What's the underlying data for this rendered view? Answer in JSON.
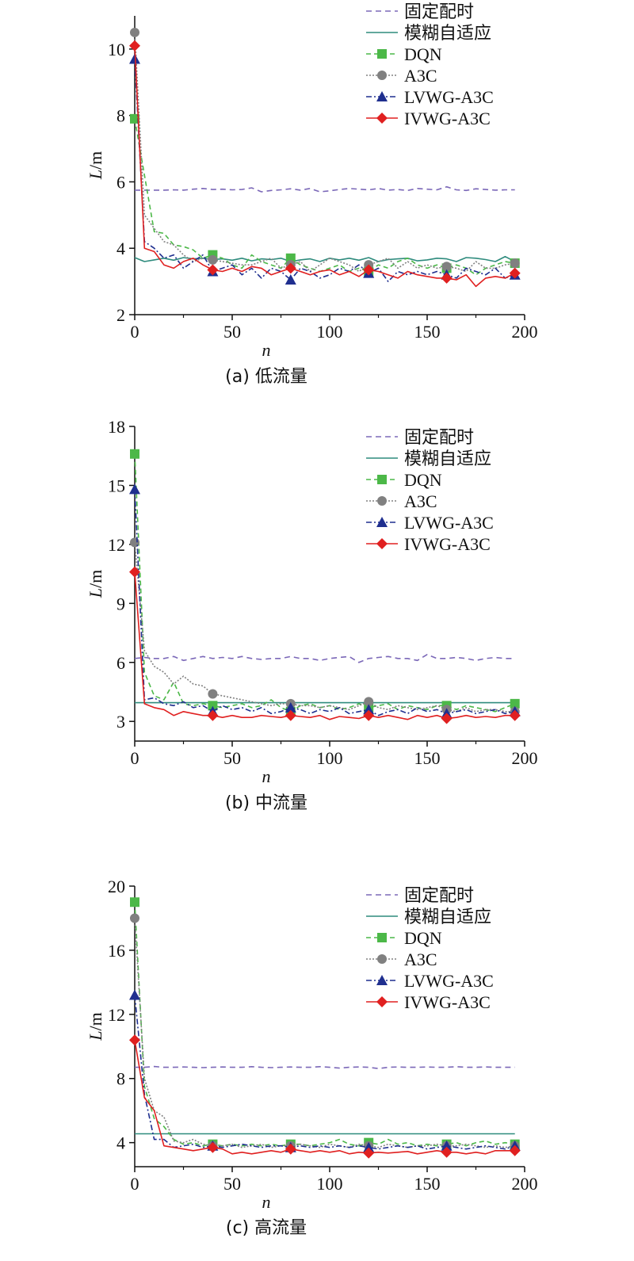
{
  "legend_labels": [
    "固定配时",
    "模糊自适应",
    "DQN",
    "A3C",
    "LVWG-A3C",
    "IVWG-A3C"
  ],
  "series_styles": [
    {
      "name": "固定配时",
      "color": "#7b68b8",
      "dash": "7,5",
      "marker": "none"
    },
    {
      "name": "模糊自适应",
      "color": "#2e8b7d",
      "dash": "",
      "marker": "none"
    },
    {
      "name": "DQN",
      "color": "#4cb848",
      "dash": "6,4",
      "marker": "square"
    },
    {
      "name": "A3C",
      "color": "#808080",
      "dash": "2,2",
      "marker": "circle"
    },
    {
      "name": "LVWG-A3C",
      "color": "#1f2f8f",
      "dash": "7,3,2,3",
      "marker": "triangle"
    },
    {
      "name": "IVWG-A3C",
      "color": "#e02020",
      "dash": "",
      "marker": "diamond"
    }
  ],
  "chart_data": [
    {
      "type": "line",
      "caption": "(a) 低流量",
      "xlabel": "n",
      "ylabel": "L/m",
      "xlim": [
        0,
        200
      ],
      "ylim": [
        2,
        11
      ],
      "xticks": [
        0,
        50,
        100,
        150,
        200
      ],
      "yticks": [
        2,
        4,
        6,
        8,
        10
      ],
      "x": [
        0,
        5,
        10,
        15,
        20,
        25,
        30,
        35,
        40,
        45,
        50,
        55,
        60,
        65,
        70,
        75,
        80,
        85,
        90,
        95,
        100,
        105,
        110,
        115,
        120,
        125,
        130,
        135,
        140,
        145,
        150,
        155,
        160,
        165,
        170,
        175,
        180,
        185,
        190,
        195
      ],
      "marker_x": [
        0,
        40,
        80,
        120,
        160,
        195
      ],
      "series": [
        {
          "name": "固定配时",
          "values": [
            5.75,
            5.75,
            5.75,
            5.75,
            5.76,
            5.75,
            5.78,
            5.8,
            5.77,
            5.78,
            5.76,
            5.77,
            5.82,
            5.7,
            5.74,
            5.76,
            5.79,
            5.75,
            5.8,
            5.7,
            5.73,
            5.77,
            5.8,
            5.78,
            5.76,
            5.8,
            5.75,
            5.77,
            5.74,
            5.8,
            5.78,
            5.76,
            5.85,
            5.76,
            5.74,
            5.79,
            5.77,
            5.75,
            5.76,
            5.76
          ]
        },
        {
          "name": "模糊自适应",
          "values": [
            3.72,
            3.6,
            3.65,
            3.7,
            3.64,
            3.72,
            3.68,
            3.7,
            3.66,
            3.68,
            3.64,
            3.7,
            3.62,
            3.68,
            3.66,
            3.7,
            3.6,
            3.65,
            3.68,
            3.6,
            3.7,
            3.65,
            3.7,
            3.64,
            3.72,
            3.6,
            3.66,
            3.68,
            3.7,
            3.62,
            3.65,
            3.7,
            3.68,
            3.6,
            3.72,
            3.7,
            3.66,
            3.6,
            3.75,
            3.6
          ]
        },
        {
          "name": "DQN",
          "values": [
            7.9,
            6.2,
            4.5,
            4.45,
            4.1,
            4.05,
            3.95,
            3.7,
            3.8,
            3.7,
            3.5,
            3.4,
            3.8,
            3.6,
            3.5,
            3.4,
            3.7,
            3.5,
            3.4,
            3.3,
            3.4,
            3.5,
            3.3,
            3.4,
            3.3,
            3.5,
            3.4,
            3.6,
            3.7,
            3.5,
            3.4,
            3.5,
            3.4,
            3.5,
            3.4,
            3.2,
            3.4,
            3.5,
            3.6,
            3.55
          ]
        },
        {
          "name": "A3C",
          "values": [
            10.5,
            5.0,
            4.6,
            4.2,
            4.1,
            3.8,
            3.6,
            3.7,
            3.65,
            3.6,
            3.55,
            3.5,
            3.5,
            3.6,
            3.7,
            3.4,
            3.5,
            3.6,
            3.3,
            3.5,
            3.7,
            3.6,
            3.5,
            3.3,
            3.5,
            3.6,
            3.7,
            3.4,
            3.6,
            3.4,
            3.5,
            3.4,
            3.45,
            3.4,
            3.3,
            3.6,
            3.4,
            3.4,
            3.5,
            3.55
          ]
        },
        {
          "name": "LVWG-A3C",
          "values": [
            9.7,
            4.2,
            4.0,
            3.7,
            3.8,
            3.4,
            3.6,
            3.8,
            3.3,
            3.4,
            3.5,
            3.2,
            3.4,
            3.1,
            3.4,
            3.3,
            3.05,
            3.4,
            3.3,
            3.1,
            3.2,
            3.4,
            3.3,
            3.5,
            3.25,
            3.4,
            3.0,
            3.3,
            3.2,
            3.3,
            3.2,
            3.3,
            3.2,
            3.1,
            3.4,
            3.3,
            3.2,
            3.4,
            3.1,
            3.2
          ]
        },
        {
          "name": "IVWG-A3C",
          "values": [
            10.1,
            4.0,
            3.9,
            3.5,
            3.4,
            3.6,
            3.7,
            3.5,
            3.35,
            3.3,
            3.4,
            3.3,
            3.45,
            3.4,
            3.2,
            3.3,
            3.4,
            3.3,
            3.2,
            3.3,
            3.35,
            3.2,
            3.3,
            3.15,
            3.35,
            3.3,
            3.2,
            3.1,
            3.3,
            3.2,
            3.15,
            3.1,
            3.1,
            3.05,
            3.2,
            2.85,
            3.1,
            3.15,
            3.1,
            3.25
          ]
        }
      ]
    },
    {
      "type": "line",
      "caption": "(b) 中流量",
      "xlabel": "n",
      "ylabel": "L/m",
      "xlim": [
        0,
        200
      ],
      "ylim": [
        2,
        18
      ],
      "xticks": [
        0,
        50,
        100,
        150,
        200
      ],
      "yticks": [
        3,
        6,
        9,
        12,
        15,
        18
      ],
      "x": [
        0,
        5,
        10,
        15,
        20,
        25,
        30,
        35,
        40,
        45,
        50,
        55,
        60,
        65,
        70,
        75,
        80,
        85,
        90,
        95,
        100,
        105,
        110,
        115,
        120,
        125,
        130,
        135,
        140,
        145,
        150,
        155,
        160,
        165,
        170,
        175,
        180,
        185,
        190,
        195
      ],
      "marker_x": [
        0,
        40,
        80,
        120,
        160,
        195
      ],
      "series": [
        {
          "name": "固定配时",
          "values": [
            6.2,
            6.25,
            6.2,
            6.2,
            6.3,
            6.1,
            6.2,
            6.3,
            6.2,
            6.25,
            6.2,
            6.3,
            6.2,
            6.15,
            6.2,
            6.2,
            6.3,
            6.2,
            6.2,
            6.1,
            6.2,
            6.25,
            6.3,
            6.0,
            6.2,
            6.25,
            6.3,
            6.2,
            6.2,
            6.1,
            6.4,
            6.2,
            6.2,
            6.25,
            6.2,
            6.1,
            6.2,
            6.25,
            6.2,
            6.2
          ]
        },
        {
          "name": "模糊自适应",
          "values": [
            3.95,
            3.95,
            3.95,
            3.95,
            3.95,
            3.95,
            3.95,
            3.95,
            3.95,
            3.95,
            3.95,
            3.95,
            3.95,
            3.95,
            3.95,
            3.95,
            3.95,
            3.95,
            3.95,
            3.95,
            3.95,
            3.95,
            3.95,
            3.95,
            3.95,
            3.95,
            3.95,
            3.95,
            3.95,
            3.95,
            3.95,
            3.95,
            3.95,
            3.95,
            3.95,
            3.95,
            3.95,
            3.95,
            3.95,
            3.95
          ]
        },
        {
          "name": "DQN",
          "values": [
            16.6,
            5.5,
            4.3,
            4.1,
            5.0,
            3.9,
            3.8,
            3.9,
            3.8,
            3.7,
            3.8,
            3.9,
            3.7,
            3.8,
            4.1,
            3.7,
            3.5,
            3.8,
            3.9,
            3.7,
            3.8,
            3.6,
            3.7,
            3.9,
            3.7,
            3.8,
            3.9,
            3.6,
            3.8,
            3.7,
            3.6,
            3.8,
            3.8,
            3.6,
            3.8,
            3.7,
            3.6,
            3.5,
            3.7,
            3.9
          ]
        },
        {
          "name": "A3C",
          "values": [
            12.1,
            6.6,
            5.8,
            5.5,
            4.9,
            5.3,
            4.9,
            4.8,
            4.4,
            4.3,
            4.2,
            4.1,
            4.0,
            3.9,
            3.8,
            3.9,
            3.9,
            3.8,
            3.8,
            3.7,
            3.8,
            3.7,
            3.6,
            3.8,
            4.0,
            3.7,
            3.6,
            3.8,
            3.7,
            3.6,
            3.7,
            3.8,
            3.6,
            3.5,
            3.7,
            3.5,
            3.6,
            3.6,
            3.5,
            3.5
          ]
        },
        {
          "name": "LVWG-A3C",
          "values": [
            14.8,
            4.1,
            4.2,
            3.9,
            3.8,
            4.0,
            3.7,
            3.8,
            3.5,
            3.8,
            3.6,
            3.7,
            3.5,
            3.7,
            3.4,
            3.5,
            3.7,
            3.6,
            3.4,
            3.6,
            3.5,
            3.7,
            3.4,
            3.5,
            3.6,
            3.3,
            3.5,
            3.6,
            3.4,
            3.7,
            3.5,
            3.6,
            3.4,
            3.5,
            3.6,
            3.4,
            3.5,
            3.6,
            3.4,
            3.5
          ]
        },
        {
          "name": "IVWG-A3C",
          "values": [
            10.6,
            3.9,
            3.7,
            3.6,
            3.3,
            3.5,
            3.4,
            3.3,
            3.3,
            3.2,
            3.3,
            3.2,
            3.2,
            3.3,
            3.25,
            3.2,
            3.3,
            3.25,
            3.2,
            3.3,
            3.1,
            3.25,
            3.2,
            3.15,
            3.3,
            3.2,
            3.3,
            3.2,
            3.1,
            3.3,
            3.2,
            3.3,
            3.15,
            3.2,
            3.3,
            3.2,
            3.25,
            3.2,
            3.3,
            3.3
          ]
        }
      ]
    },
    {
      "type": "line",
      "caption": "(c) 高流量",
      "xlabel": "n",
      "ylabel": "L/m",
      "xlim": [
        0,
        200
      ],
      "ylim": [
        2.5,
        20
      ],
      "xticks": [
        0,
        50,
        100,
        150,
        200
      ],
      "yticks": [
        4,
        8,
        12,
        16,
        20
      ],
      "x": [
        0,
        5,
        10,
        15,
        20,
        25,
        30,
        35,
        40,
        45,
        50,
        55,
        60,
        65,
        70,
        75,
        80,
        85,
        90,
        95,
        100,
        105,
        110,
        115,
        120,
        125,
        130,
        135,
        140,
        145,
        150,
        155,
        160,
        165,
        170,
        175,
        180,
        185,
        190,
        195
      ],
      "marker_x": [
        0,
        40,
        80,
        120,
        160,
        195
      ],
      "series": [
        {
          "name": "固定配时",
          "values": [
            8.7,
            8.7,
            8.75,
            8.7,
            8.7,
            8.72,
            8.7,
            8.68,
            8.7,
            8.72,
            8.7,
            8.7,
            8.74,
            8.7,
            8.68,
            8.7,
            8.72,
            8.7,
            8.7,
            8.74,
            8.7,
            8.65,
            8.7,
            8.72,
            8.7,
            8.62,
            8.7,
            8.72,
            8.7,
            8.7,
            8.72,
            8.7,
            8.7,
            8.74,
            8.7,
            8.7,
            8.72,
            8.7,
            8.7,
            8.7
          ]
        },
        {
          "name": "模糊自适应",
          "values": [
            4.55,
            4.55,
            4.55,
            4.55,
            4.55,
            4.55,
            4.55,
            4.55,
            4.55,
            4.55,
            4.55,
            4.55,
            4.55,
            4.55,
            4.55,
            4.55,
            4.55,
            4.55,
            4.55,
            4.55,
            4.55,
            4.55,
            4.55,
            4.55,
            4.55,
            4.55,
            4.55,
            4.55,
            4.55,
            4.55,
            4.55,
            4.55,
            4.55,
            4.55,
            4.55,
            4.55,
            4.55,
            4.55,
            4.55,
            4.55
          ]
        },
        {
          "name": "DQN",
          "values": [
            19.0,
            7.5,
            5.5,
            5.0,
            4.2,
            3.9,
            4.0,
            3.8,
            3.9,
            3.8,
            3.9,
            3.8,
            3.9,
            3.8,
            3.9,
            3.8,
            3.9,
            3.9,
            3.8,
            3.9,
            4.0,
            4.2,
            3.9,
            3.8,
            4.0,
            3.9,
            4.2,
            3.9,
            4.0,
            3.8,
            3.9,
            3.8,
            3.9,
            4.0,
            3.8,
            4.0,
            4.1,
            3.9,
            4.0,
            3.9
          ]
        },
        {
          "name": "A3C",
          "values": [
            18.0,
            8.0,
            6.0,
            5.6,
            4.1,
            4.0,
            4.2,
            3.9,
            3.8,
            3.8,
            3.9,
            3.7,
            3.8,
            3.9,
            3.7,
            3.8,
            3.8,
            3.9,
            3.8,
            3.7,
            3.9,
            3.8,
            3.7,
            3.9,
            3.8,
            3.7,
            3.9,
            3.8,
            3.7,
            3.8,
            3.8,
            3.9,
            3.8,
            3.8,
            3.9,
            3.8,
            3.7,
            3.8,
            3.7,
            3.8
          ]
        },
        {
          "name": "LVWG-A3C",
          "values": [
            13.2,
            7.0,
            4.2,
            4.2,
            3.7,
            3.8,
            3.9,
            3.7,
            3.8,
            3.7,
            3.8,
            3.9,
            3.8,
            3.7,
            3.8,
            3.8,
            3.7,
            3.8,
            3.7,
            3.8,
            3.7,
            3.8,
            3.7,
            3.8,
            3.7,
            3.6,
            3.7,
            3.8,
            3.7,
            3.8,
            3.6,
            3.7,
            3.8,
            3.7,
            3.6,
            3.7,
            3.8,
            3.7,
            3.6,
            3.8
          ]
        },
        {
          "name": "IVWG-A3C",
          "values": [
            10.4,
            6.8,
            6.0,
            3.8,
            3.7,
            3.6,
            3.5,
            3.6,
            3.7,
            3.6,
            3.3,
            3.4,
            3.3,
            3.4,
            3.5,
            3.4,
            3.6,
            3.5,
            3.4,
            3.5,
            3.4,
            3.5,
            3.3,
            3.4,
            3.35,
            3.4,
            3.35,
            3.4,
            3.45,
            3.3,
            3.4,
            3.5,
            3.4,
            3.4,
            3.3,
            3.4,
            3.3,
            3.5,
            3.5,
            3.5
          ]
        }
      ]
    }
  ]
}
